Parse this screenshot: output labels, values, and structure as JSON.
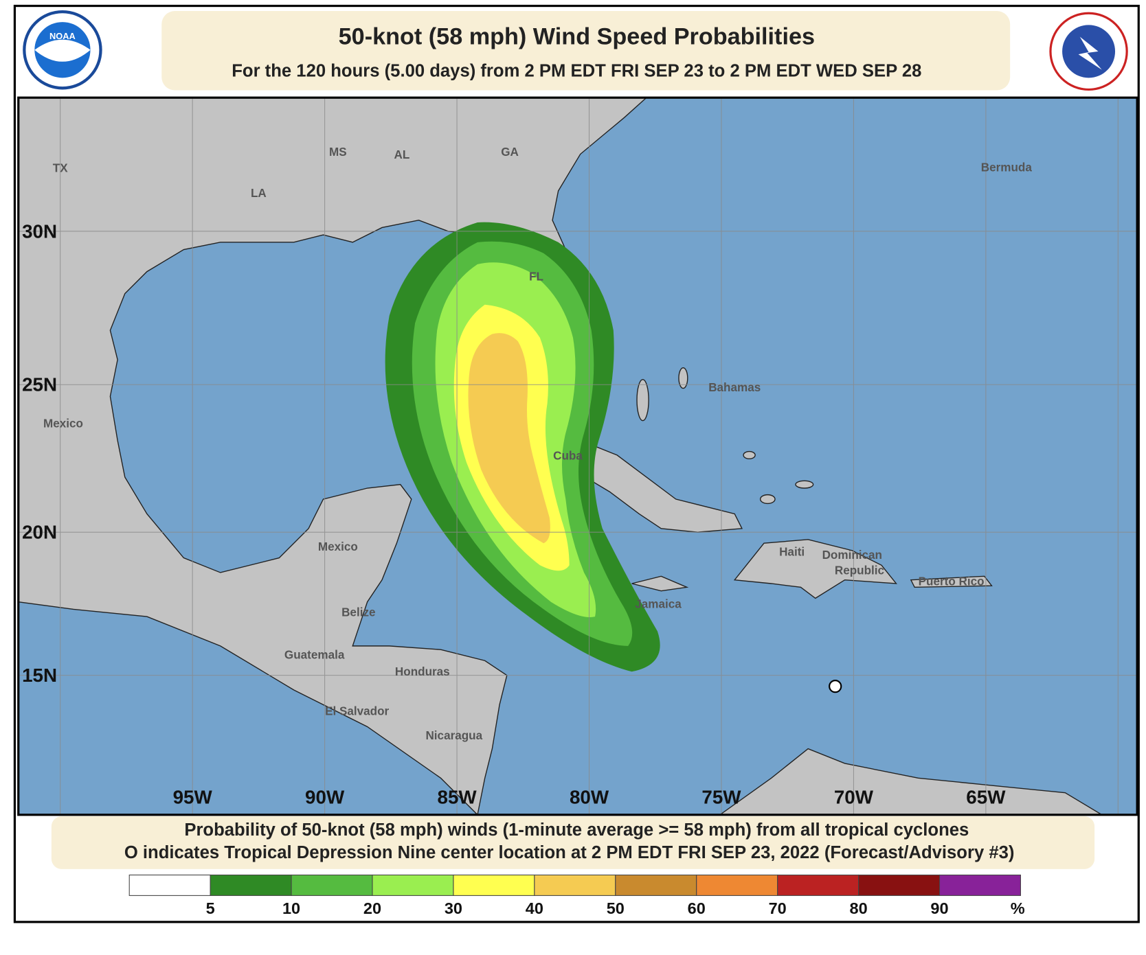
{
  "header": {
    "title": "50-knot (58 mph) Wind Speed Probabilities",
    "subtitle": "For the 120 hours (5.00 days) from 2 PM EDT FRI SEP 23 to 2 PM EDT WED SEP 28"
  },
  "map": {
    "lat_labels": [
      "30N",
      "25N",
      "20N",
      "15N"
    ],
    "lon_labels": [
      "95W",
      "90W",
      "85W",
      "80W",
      "75W",
      "70W",
      "65W"
    ],
    "place_labels": [
      "TX",
      "LA",
      "MS",
      "AL",
      "GA",
      "FL",
      "Bermuda",
      "Bahamas",
      "Mexico",
      "Cuba",
      "Mexico",
      "Haiti",
      "Dominican",
      "Republic",
      "Puerto Rico",
      "Jamaica",
      "Belize",
      "Guatemala",
      "Honduras",
      "El Salvador",
      "Nicaragua"
    ]
  },
  "footer": {
    "line1": "Probability of 50-knot (58 mph) winds (1-minute average >= 58 mph) from all tropical cyclones",
    "line2": "O indicates Tropical Depression Nine center location at 2 PM EDT FRI SEP 23, 2022 (Forecast/Advisory #3)"
  },
  "legend": {
    "ticks": [
      5,
      10,
      20,
      30,
      40,
      50,
      60,
      70,
      80,
      90
    ],
    "unit": "%"
  }
}
